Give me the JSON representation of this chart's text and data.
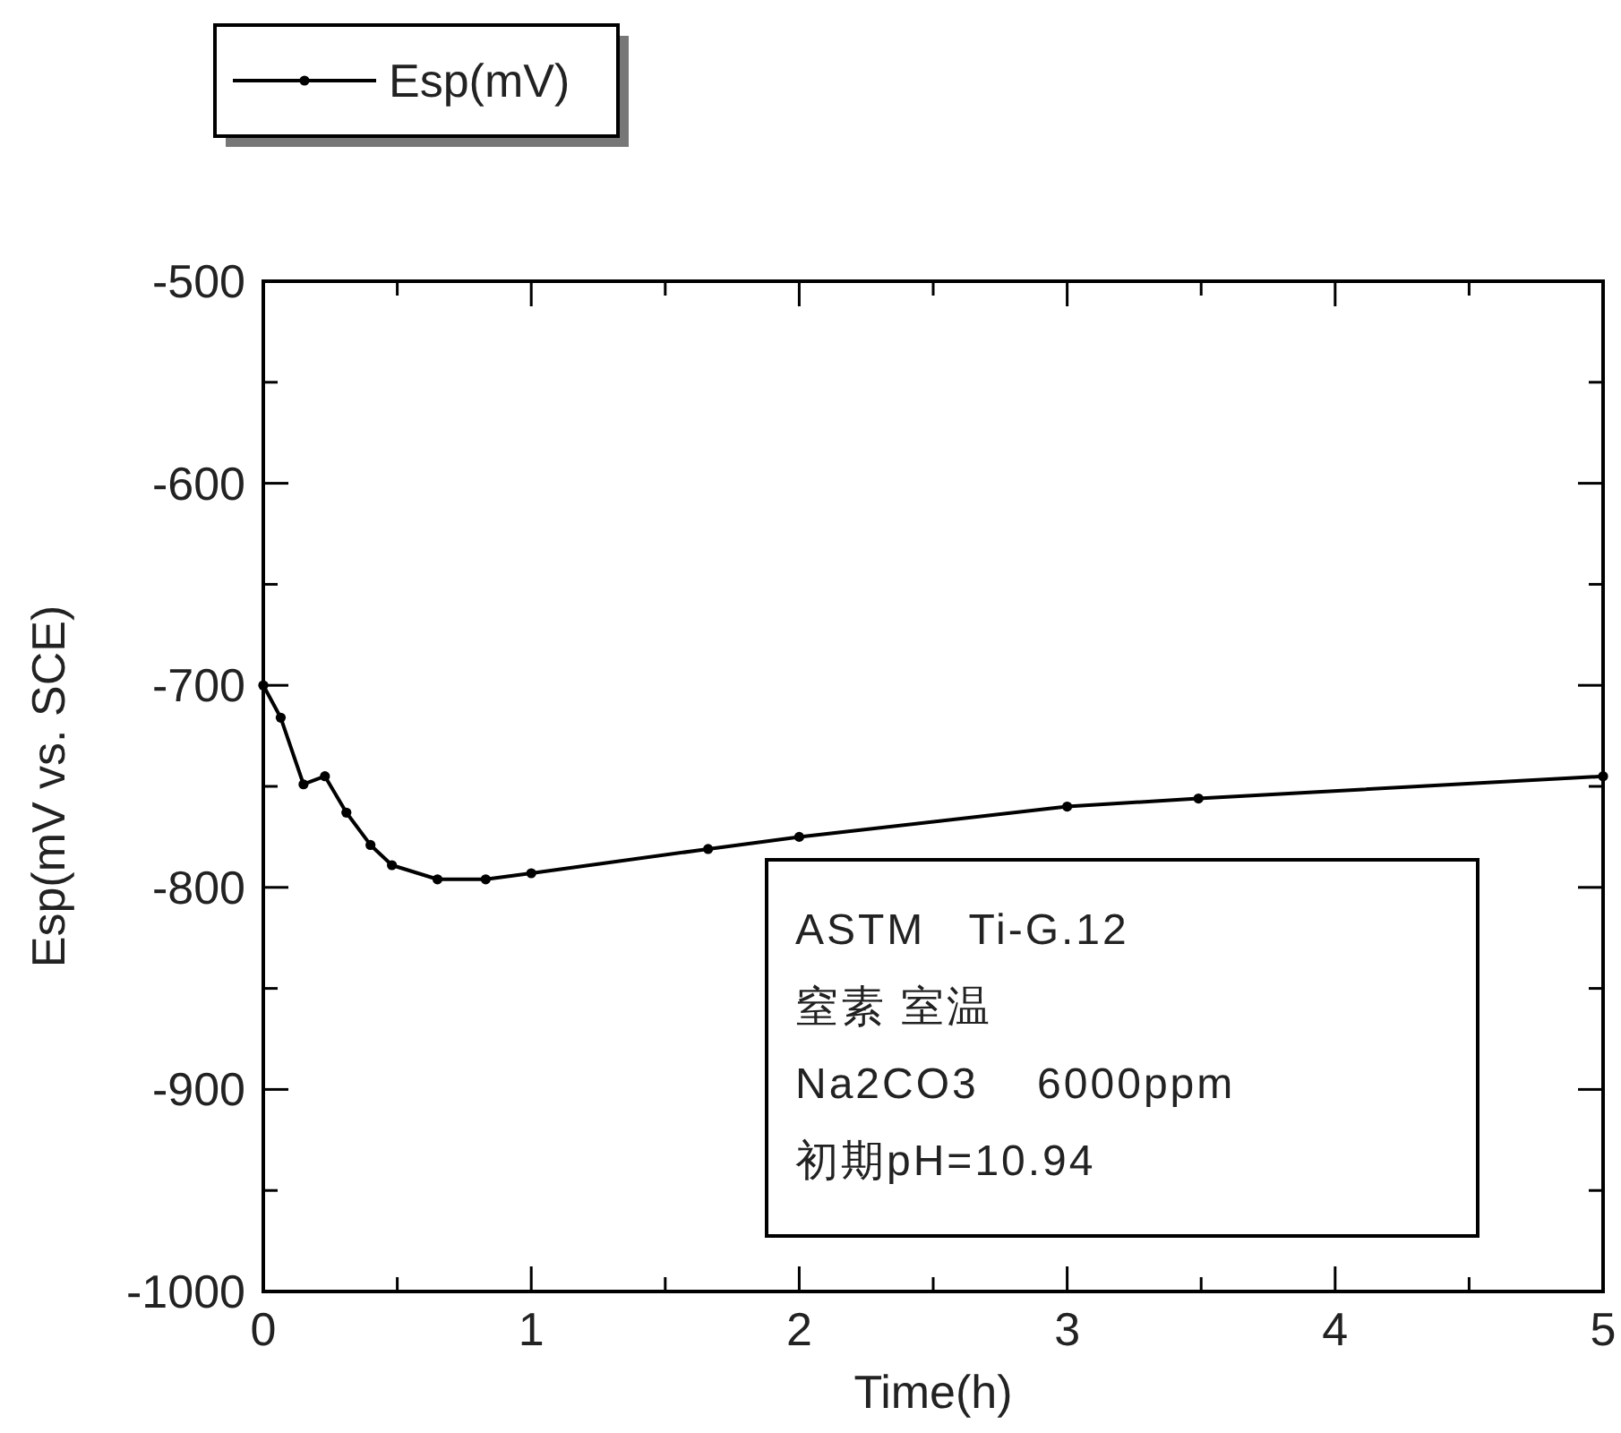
{
  "chart_data": {
    "type": "line",
    "xlabel": "Time(h)",
    "ylabel": "Esp(mV vs. SCE)",
    "x": [
      0,
      0.065,
      0.15,
      0.23,
      0.31,
      0.4,
      0.48,
      0.65,
      0.83,
      1.0,
      1.66,
      2.0,
      3.0,
      3.49,
      5.0
    ],
    "series": [
      {
        "name": "Esp(mV)",
        "color": "#000000",
        "values": [
          -700,
          -716,
          -749,
          -745,
          -763,
          -779,
          -789,
          -796,
          -796,
          -793,
          -781,
          -775,
          -760,
          -756,
          -745
        ]
      }
    ],
    "xlim": [
      0,
      5
    ],
    "xticks": [
      0,
      {
        "value": 0.5,
        "label": null
      },
      1,
      {
        "value": 1.5,
        "label": null
      },
      2,
      {
        "value": 2.5,
        "label": null
      },
      3,
      {
        "value": 3.5,
        "label": null
      },
      4,
      {
        "value": 4.5,
        "label": null
      },
      5
    ],
    "ylim": [
      -1000,
      -500
    ],
    "yticks": [
      -1000,
      {
        "value": -950,
        "label": null
      },
      -900,
      {
        "value": -850,
        "label": null
      },
      -800,
      {
        "value": -750,
        "label": null
      },
      -700,
      {
        "value": -650,
        "label": null
      },
      -600,
      {
        "value": -550,
        "label": null
      },
      -500
    ],
    "annotations": [
      "ASTM   Ti-G.12",
      "窒素 室温",
      "Na2CO3    6000ppm",
      "初期pH=10.94"
    ],
    "legend": "top left",
    "marker": "circle",
    "line_style": "solid",
    "grid": false
  }
}
